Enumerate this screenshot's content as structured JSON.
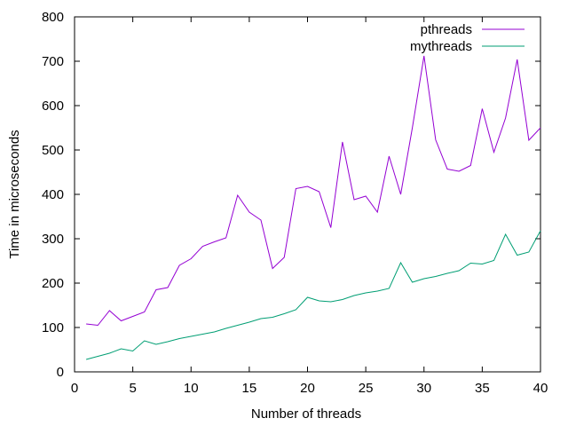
{
  "chart_data": {
    "type": "line",
    "title": "",
    "xlabel": "Number of threads",
    "ylabel": "Time in microseconds",
    "xlim": [
      0,
      40
    ],
    "ylim": [
      0,
      800
    ],
    "x_ticks": [
      0,
      5,
      10,
      15,
      20,
      25,
      30,
      35,
      40
    ],
    "y_ticks": [
      0,
      100,
      200,
      300,
      400,
      500,
      600,
      700,
      800
    ],
    "grid": false,
    "legend_position": "top-right",
    "x": [
      1,
      2,
      3,
      4,
      5,
      6,
      7,
      8,
      9,
      10,
      11,
      12,
      13,
      14,
      15,
      16,
      17,
      18,
      19,
      20,
      21,
      22,
      23,
      24,
      25,
      26,
      27,
      28,
      29,
      30,
      31,
      32,
      33,
      34,
      35,
      36,
      37,
      38,
      39,
      40
    ],
    "series": [
      {
        "name": "pthreads",
        "color": "#9400d3",
        "values": [
          108,
          105,
          138,
          115,
          125,
          135,
          185,
          190,
          240,
          255,
          283,
          293,
          302,
          398,
          360,
          342,
          233,
          258,
          413,
          418,
          406,
          325,
          518,
          388,
          396,
          360,
          486,
          400,
          550,
          712,
          523,
          457,
          452,
          465,
          593,
          495,
          572,
          704,
          522,
          550
        ]
      },
      {
        "name": "mythreads",
        "color": "#009e73",
        "values": [
          28,
          35,
          42,
          52,
          47,
          70,
          62,
          68,
          75,
          80,
          85,
          90,
          98,
          105,
          112,
          120,
          123,
          131,
          140,
          168,
          160,
          158,
          163,
          172,
          178,
          182,
          188,
          246,
          202,
          210,
          215,
          222,
          228,
          245,
          243,
          251,
          310,
          263,
          270,
          318
        ]
      }
    ]
  }
}
